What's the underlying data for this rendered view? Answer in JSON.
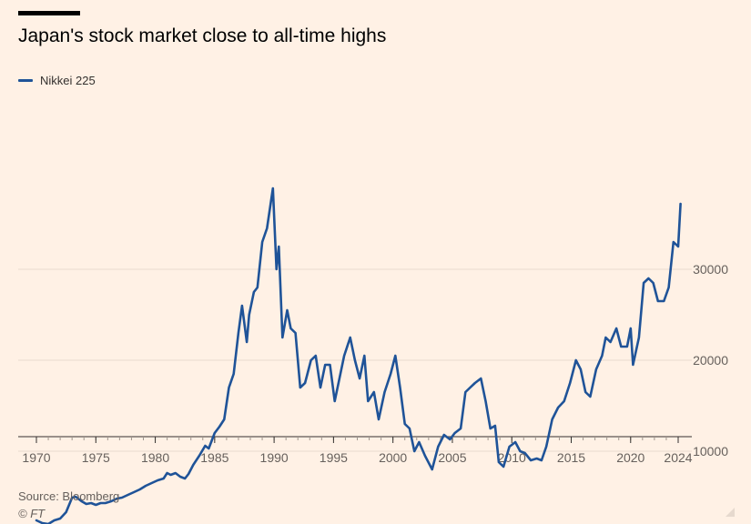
{
  "header": {
    "title": "Japan's stock market close to all-time highs"
  },
  "footer": {
    "source": "Source: Bloomberg",
    "credit": "© FT"
  },
  "colors": {
    "background": "#fff1e5",
    "line": "#1f5398",
    "grid": "#e9dccf",
    "axis": "#33302e",
    "tick_text": "#66605c"
  },
  "chart_data": {
    "type": "line",
    "title": "Japan's stock market close to all-time highs",
    "xlabel": "",
    "ylabel": "",
    "x_ticks": [
      "1970",
      "1975",
      "1980",
      "1985",
      "1990",
      "1995",
      "2000",
      "2005",
      "2010",
      "2015",
      "2020",
      "2024"
    ],
    "y_ticks": [
      "10000",
      "20000",
      "30000"
    ],
    "xlim": [
      1970,
      2024.2
    ],
    "ylim": [
      2000,
      40000
    ],
    "grid": true,
    "y_axis_side": "right",
    "legend": "top-left",
    "series": [
      {
        "name": "Nikkei 225",
        "color": "#1f5398",
        "x": [
          1970,
          1970.5,
          1971,
          1971.5,
          1972,
          1972.5,
          1973,
          1973.3,
          1973.8,
          1974.2,
          1974.6,
          1975,
          1975.4,
          1975.8,
          1976.3,
          1976.8,
          1977.2,
          1977.7,
          1978.2,
          1978.7,
          1979.2,
          1979.7,
          1980.2,
          1980.7,
          1981,
          1981.3,
          1981.7,
          1982.1,
          1982.5,
          1982.8,
          1983.2,
          1983.7,
          1984.2,
          1984.5,
          1985,
          1985.4,
          1985.8,
          1986.2,
          1986.6,
          1987,
          1987.3,
          1987.7,
          1987.9,
          1988.3,
          1988.6,
          1989,
          1989.4,
          1989.9,
          1990.2,
          1990.4,
          1990.7,
          1991.1,
          1991.4,
          1991.8,
          1992.2,
          1992.6,
          1993.1,
          1993.5,
          1993.9,
          1994.3,
          1994.7,
          1995.1,
          1995.5,
          1995.9,
          1996.4,
          1996.8,
          1997.2,
          1997.6,
          1997.9,
          1998.4,
          1998.8,
          1999.3,
          1999.8,
          2000.2,
          2000.6,
          2001,
          2001.4,
          2001.8,
          2002.2,
          2002.7,
          2003.3,
          2003.8,
          2004.3,
          2004.8,
          2005.2,
          2005.7,
          2006.1,
          2006.5,
          2006.9,
          2007.4,
          2007.8,
          2008.2,
          2008.6,
          2008.9,
          2009.3,
          2009.8,
          2010.3,
          2010.7,
          2011.1,
          2011.6,
          2012.1,
          2012.5,
          2012.9,
          2013.4,
          2013.9,
          2014.4,
          2014.9,
          2015.4,
          2015.8,
          2016.2,
          2016.6,
          2017.1,
          2017.6,
          2017.9,
          2018.3,
          2018.8,
          2019.2,
          2019.7,
          2020.0,
          2020.2,
          2020.7,
          2021.1,
          2021.5,
          2021.9,
          2022.3,
          2022.8,
          2023.2,
          2023.6,
          2024.0,
          2024.2
        ],
        "values": [
          2400,
          2100,
          2000,
          2400,
          2600,
          3300,
          4900,
          5000,
          4500,
          4200,
          4300,
          4100,
          4300,
          4300,
          4500,
          4800,
          4900,
          5200,
          5500,
          5800,
          6200,
          6500,
          6800,
          7000,
          7600,
          7400,
          7600,
          7200,
          7000,
          7500,
          8500,
          9500,
          10600,
          10300,
          12000,
          12700,
          13500,
          17000,
          18500,
          23000,
          26000,
          22000,
          25000,
          27500,
          28000,
          33000,
          34500,
          38900,
          30000,
          32500,
          22500,
          25500,
          23500,
          23000,
          17000,
          17500,
          20000,
          20500,
          17000,
          19500,
          19500,
          15500,
          18000,
          20500,
          22500,
          20000,
          18000,
          20500,
          15500,
          16500,
          13500,
          16500,
          18500,
          20500,
          17000,
          13000,
          12500,
          10000,
          11000,
          9500,
          8000,
          10500,
          11800,
          11300,
          12000,
          12500,
          16500,
          17000,
          17500,
          18000,
          15500,
          12500,
          12800,
          8800,
          8300,
          10500,
          11000,
          10000,
          9800,
          9000,
          9200,
          9000,
          10500,
          13500,
          14800,
          15500,
          17500,
          20000,
          19000,
          16500,
          16000,
          19000,
          20500,
          22500,
          22000,
          23500,
          21500,
          21500,
          23500,
          19500,
          22500,
          28500,
          29000,
          28500,
          26500,
          26500,
          28000,
          33000,
          32500,
          37200
        ]
      }
    ]
  }
}
